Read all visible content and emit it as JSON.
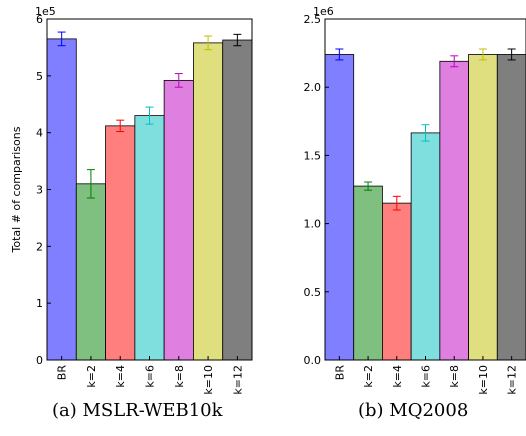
{
  "chart_data": [
    {
      "type": "bar",
      "caption": "(a) MSLR-WEB10k",
      "ylabel": "Total # of comparisons",
      "y_exponent_label": "1e5",
      "ylim": [
        0,
        6
      ],
      "yticks": [
        "0",
        "1",
        "2",
        "3",
        "4",
        "5",
        "6"
      ],
      "categories": [
        "BR",
        "k=2",
        "k=4",
        "k=6",
        "k=8",
        "k=10",
        "k=12"
      ],
      "values": [
        5.65,
        3.1,
        4.12,
        4.3,
        4.92,
        5.58,
        5.63
      ],
      "errors": [
        0.12,
        0.25,
        0.1,
        0.15,
        0.12,
        0.12,
        0.1
      ],
      "colors": [
        "#7f7fff",
        "#7fbf7f",
        "#ff7f7f",
        "#7fdfdf",
        "#df7fdf",
        "#dfdf7f",
        "#7f7f7f"
      ],
      "error_colors": [
        "#0000ff",
        "#008000",
        "#ff0000",
        "#00bfbf",
        "#bf00bf",
        "#bfbf00",
        "#000000"
      ]
    },
    {
      "type": "bar",
      "caption": "(b) MQ2008",
      "ylabel": "",
      "y_exponent_label": "1e6",
      "ylim": [
        0,
        2.5
      ],
      "yticks": [
        "0.0",
        "0.5",
        "1.0",
        "1.5",
        "2.0",
        "2.5"
      ],
      "categories": [
        "BR",
        "k=2",
        "k=4",
        "k=6",
        "k=8",
        "k=10",
        "k=12"
      ],
      "values": [
        2.24,
        1.275,
        1.15,
        1.665,
        2.19,
        2.24,
        2.24
      ],
      "errors": [
        0.04,
        0.03,
        0.05,
        0.06,
        0.04,
        0.04,
        0.04
      ],
      "colors": [
        "#7f7fff",
        "#7fbf7f",
        "#ff7f7f",
        "#7fdfdf",
        "#df7fdf",
        "#dfdf7f",
        "#7f7f7f"
      ],
      "error_colors": [
        "#0000ff",
        "#008000",
        "#ff0000",
        "#00bfbf",
        "#bf00bf",
        "#bfbf00",
        "#000000"
      ]
    }
  ]
}
